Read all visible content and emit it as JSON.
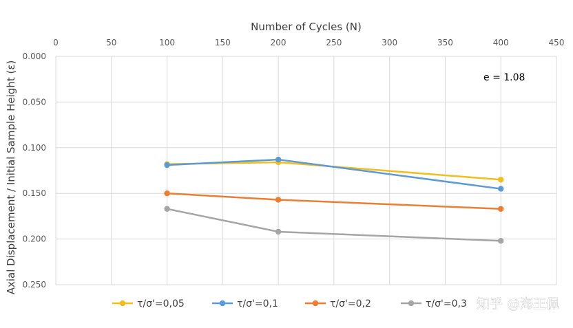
{
  "chart_data": {
    "type": "line",
    "xlabel": "Number of Cycles (N)",
    "ylabel": "Axial Displacement / Initial Sample Height (ε)",
    "xlim": [
      0,
      450
    ],
    "ylim": [
      0,
      0.25
    ],
    "y_inverted": true,
    "x_axis_position": "top",
    "x_ticks": [
      "0",
      "50",
      "100",
      "150",
      "200",
      "250",
      "300",
      "350",
      "400",
      "450"
    ],
    "y_ticks": [
      "0.000",
      "0.050",
      "0.100",
      "0.150",
      "0.200",
      "0.250"
    ],
    "grid": true,
    "legend_position": "bottom",
    "annotation": "e = 1.08",
    "x": [
      100,
      200,
      400
    ],
    "series": [
      {
        "name": "τ/σ'=0,05",
        "color": "#F2BE1C",
        "values": [
          0.118,
          0.116,
          0.135
        ]
      },
      {
        "name": "τ/σ'=0,1",
        "color": "#5B9BD5",
        "values": [
          0.119,
          0.113,
          0.145
        ]
      },
      {
        "name": "τ/σ'=0,2",
        "color": "#ED7D31",
        "values": [
          0.15,
          0.157,
          0.167
        ]
      },
      {
        "name": "τ/σ'=0,3",
        "color": "#A5A5A5",
        "values": [
          0.167,
          0.192,
          0.202
        ]
      }
    ]
  },
  "watermark": "知乎 @海王佩"
}
